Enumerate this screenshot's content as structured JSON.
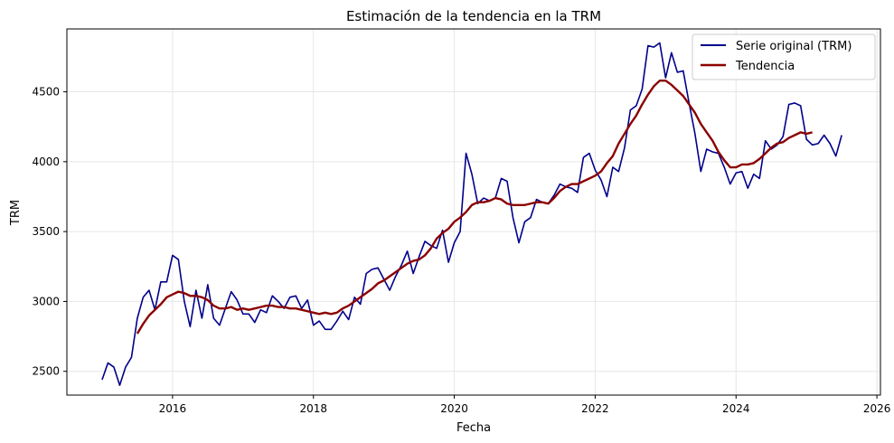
{
  "chart_data": {
    "type": "line",
    "title": "Estimación de la tendencia en la TRM",
    "xlabel": "Fecha",
    "ylabel": "TRM",
    "xlim": [
      2014.5,
      2026.05
    ],
    "ylim": [
      2330,
      4950
    ],
    "x_ticks": [
      2016,
      2018,
      2020,
      2022,
      2024,
      2026
    ],
    "x_tick_labels": [
      "2016",
      "2018",
      "2020",
      "2022",
      "2024",
      "2026"
    ],
    "y_ticks": [
      2500,
      3000,
      3500,
      4000,
      4500
    ],
    "y_tick_labels": [
      "2500",
      "3000",
      "3500",
      "4000",
      "4500"
    ],
    "grid": true,
    "legend_position": "top-right",
    "series": [
      {
        "name": "Serie original (TRM)",
        "color": "#00008b",
        "x": [
          2015.0,
          2015.083,
          2015.167,
          2015.25,
          2015.333,
          2015.417,
          2015.5,
          2015.583,
          2015.667,
          2015.75,
          2015.833,
          2015.917,
          2016.0,
          2016.083,
          2016.167,
          2016.25,
          2016.333,
          2016.417,
          2016.5,
          2016.583,
          2016.667,
          2016.75,
          2016.833,
          2016.917,
          2017.0,
          2017.083,
          2017.167,
          2017.25,
          2017.333,
          2017.417,
          2017.5,
          2017.583,
          2017.667,
          2017.75,
          2017.833,
          2017.917,
          2018.0,
          2018.083,
          2018.167,
          2018.25,
          2018.333,
          2018.417,
          2018.5,
          2018.583,
          2018.667,
          2018.75,
          2018.833,
          2018.917,
          2019.0,
          2019.083,
          2019.167,
          2019.25,
          2019.333,
          2019.417,
          2019.5,
          2019.583,
          2019.667,
          2019.75,
          2019.833,
          2019.917,
          2020.0,
          2020.083,
          2020.167,
          2020.25,
          2020.333,
          2020.417,
          2020.5,
          2020.583,
          2020.667,
          2020.75,
          2020.833,
          2020.917,
          2021.0,
          2021.083,
          2021.167,
          2021.25,
          2021.333,
          2021.417,
          2021.5,
          2021.583,
          2021.667,
          2021.75,
          2021.833,
          2021.917,
          2022.0,
          2022.083,
          2022.167,
          2022.25,
          2022.333,
          2022.417,
          2022.5,
          2022.583,
          2022.667,
          2022.75,
          2022.833,
          2022.917,
          2023.0,
          2023.083,
          2023.167,
          2023.25,
          2023.333,
          2023.417,
          2023.5,
          2023.583,
          2023.667,
          2023.75,
          2023.833,
          2023.917,
          2024.0,
          2024.083,
          2024.167,
          2024.25,
          2024.333,
          2024.417,
          2024.5,
          2024.583,
          2024.667,
          2024.75,
          2024.833,
          2024.917,
          2025.0,
          2025.083,
          2025.167,
          2025.25,
          2025.333,
          2025.417,
          2025.5
        ],
        "values": [
          2440,
          2560,
          2530,
          2400,
          2530,
          2600,
          2880,
          3030,
          3080,
          2940,
          3140,
          3140,
          3330,
          3300,
          3000,
          2820,
          3080,
          2880,
          3120,
          2880,
          2830,
          2950,
          3070,
          3010,
          2910,
          2910,
          2850,
          2940,
          2920,
          3040,
          3000,
          2950,
          3030,
          3040,
          2950,
          3010,
          2830,
          2860,
          2800,
          2800,
          2860,
          2930,
          2870,
          3030,
          2980,
          3200,
          3230,
          3240,
          3160,
          3080,
          3180,
          3260,
          3360,
          3200,
          3320,
          3430,
          3400,
          3380,
          3510,
          3280,
          3420,
          3500,
          4060,
          3910,
          3700,
          3740,
          3720,
          3740,
          3880,
          3860,
          3600,
          3420,
          3570,
          3600,
          3730,
          3710,
          3700,
          3760,
          3840,
          3820,
          3810,
          3780,
          4030,
          4060,
          3940,
          3870,
          3750,
          3960,
          3930,
          4100,
          4370,
          4400,
          4520,
          4830,
          4820,
          4850,
          4600,
          4780,
          4640,
          4650,
          4420,
          4200,
          3930,
          4090,
          4070,
          4060,
          3960,
          3840,
          3920,
          3930,
          3810,
          3910,
          3880,
          4150,
          4090,
          4120,
          4180,
          4410,
          4420,
          4400,
          4160,
          4120,
          4130,
          4190,
          4130,
          4040,
          4190
        ]
      },
      {
        "name": "Tendencia",
        "color": "#8b0000",
        "x": [
          2015.5,
          2015.583,
          2015.667,
          2015.75,
          2015.833,
          2015.917,
          2016.0,
          2016.083,
          2016.167,
          2016.25,
          2016.333,
          2016.417,
          2016.5,
          2016.583,
          2016.667,
          2016.75,
          2016.833,
          2016.917,
          2017.0,
          2017.083,
          2017.167,
          2017.25,
          2017.333,
          2017.417,
          2017.5,
          2017.583,
          2017.667,
          2017.75,
          2017.833,
          2017.917,
          2018.0,
          2018.083,
          2018.167,
          2018.25,
          2018.333,
          2018.417,
          2018.5,
          2018.583,
          2018.667,
          2018.75,
          2018.833,
          2018.917,
          2019.0,
          2019.083,
          2019.167,
          2019.25,
          2019.333,
          2019.417,
          2019.5,
          2019.583,
          2019.667,
          2019.75,
          2019.833,
          2019.917,
          2020.0,
          2020.083,
          2020.167,
          2020.25,
          2020.333,
          2020.417,
          2020.5,
          2020.583,
          2020.667,
          2020.75,
          2020.833,
          2020.917,
          2021.0,
          2021.083,
          2021.167,
          2021.25,
          2021.333,
          2021.417,
          2021.5,
          2021.583,
          2021.667,
          2021.75,
          2021.833,
          2021.917,
          2022.0,
          2022.083,
          2022.167,
          2022.25,
          2022.333,
          2022.417,
          2022.5,
          2022.583,
          2022.667,
          2022.75,
          2022.833,
          2022.917,
          2023.0,
          2023.083,
          2023.167,
          2023.25,
          2023.333,
          2023.417,
          2023.5,
          2023.583,
          2023.667,
          2023.75,
          2023.833,
          2023.917,
          2024.0,
          2024.083,
          2024.167,
          2024.25,
          2024.333,
          2024.417,
          2024.5,
          2024.583,
          2024.667,
          2024.75,
          2024.833,
          2024.917,
          2025.0,
          2025.083
        ],
        "values": [
          2770,
          2840,
          2900,
          2940,
          2980,
          3030,
          3050,
          3070,
          3060,
          3040,
          3040,
          3030,
          3010,
          2970,
          2950,
          2950,
          2960,
          2940,
          2950,
          2940,
          2950,
          2960,
          2970,
          2970,
          2960,
          2960,
          2950,
          2950,
          2940,
          2930,
          2920,
          2910,
          2920,
          2910,
          2920,
          2950,
          2970,
          3000,
          3030,
          3060,
          3090,
          3130,
          3150,
          3180,
          3210,
          3240,
          3270,
          3290,
          3300,
          3330,
          3380,
          3450,
          3490,
          3520,
          3570,
          3600,
          3640,
          3690,
          3710,
          3710,
          3720,
          3740,
          3730,
          3700,
          3690,
          3690,
          3690,
          3700,
          3710,
          3710,
          3700,
          3740,
          3790,
          3820,
          3840,
          3840,
          3860,
          3880,
          3900,
          3930,
          3990,
          4040,
          4130,
          4200,
          4270,
          4330,
          4410,
          4480,
          4540,
          4580,
          4580,
          4550,
          4510,
          4470,
          4410,
          4350,
          4270,
          4210,
          4150,
          4070,
          4010,
          3960,
          3960,
          3980,
          3980,
          3990,
          4020,
          4060,
          4100,
          4130,
          4140,
          4170,
          4190,
          4210,
          4200,
          4210
        ]
      }
    ]
  }
}
